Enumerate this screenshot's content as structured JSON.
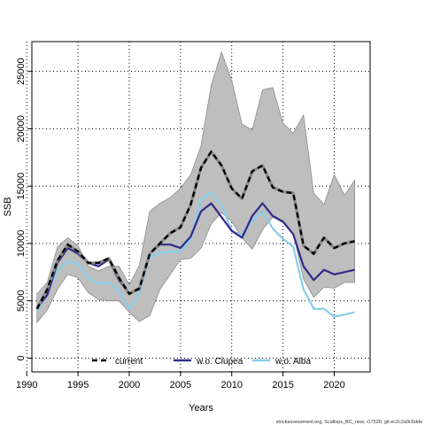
{
  "chart_data": {
    "type": "line",
    "title": "",
    "xlabel": "Years",
    "ylabel": "SSB",
    "xlim": [
      1990.5,
      2023.5
    ],
    "ylim": [
      -1200,
      27600
    ],
    "x_ticks": [
      1990,
      1995,
      2000,
      2005,
      2010,
      2015,
      2020
    ],
    "y_ticks": [
      0,
      5000,
      10000,
      15000,
      20000,
      25000
    ],
    "grid": true,
    "legend_position": "bottom",
    "x": [
      1991,
      1992,
      1993,
      1994,
      1995,
      1996,
      1997,
      1998,
      1999,
      2000,
      2001,
      2002,
      2003,
      2004,
      2005,
      2006,
      2007,
      2008,
      2009,
      2010,
      2011,
      2012,
      2013,
      2014,
      2015,
      2016,
      2017,
      2018,
      2019,
      2020,
      2021,
      2022
    ],
    "band": {
      "color": "#bebebe",
      "lower": [
        3100,
        4200,
        6000,
        7300,
        7000,
        5700,
        5100,
        5000,
        5000,
        4000,
        3200,
        3700,
        6000,
        7300,
        8600,
        8700,
        9600,
        11700,
        12700,
        11900,
        10500,
        9500,
        11200,
        12300,
        11800,
        10900,
        6900,
        5300,
        6200,
        6100,
        6600,
        6600
      ],
      "upper": [
        5600,
        6600,
        9700,
        10500,
        9800,
        8000,
        7600,
        8000,
        8000,
        6400,
        8100,
        12800,
        13500,
        14000,
        14800,
        16000,
        18500,
        23800,
        26700,
        24200,
        20400,
        19900,
        23400,
        23600,
        20500,
        19600,
        21200,
        14400,
        13400,
        16000,
        14200,
        15500
      ]
    },
    "series": [
      {
        "name": "current",
        "color": "#000000",
        "dash": "6,4",
        "values": [
          4300,
          6000,
          8500,
          9900,
          9300,
          8300,
          8300,
          8700,
          7000,
          5600,
          6100,
          9100,
          10000,
          10900,
          11400,
          13400,
          16600,
          18000,
          16800,
          14800,
          13900,
          16300,
          16800,
          14900,
          14500,
          14400,
          9800,
          9100,
          10500,
          9600,
          10000,
          10200
        ]
      },
      {
        "name": "w.o. Clupea",
        "color": "#312b8a",
        "dash": "",
        "values": [
          4400,
          5500,
          8300,
          9600,
          9100,
          8300,
          8000,
          8600,
          6800,
          5600,
          6000,
          9100,
          9900,
          9900,
          9600,
          10600,
          12800,
          13500,
          12300,
          11100,
          10500,
          12400,
          13500,
          12400,
          11900,
          10800,
          8000,
          6800,
          7700,
          7300,
          7500,
          7700
        ]
      },
      {
        "name": "w.o. Alba",
        "color": "#87ceeb",
        "dash": "",
        "values": [
          4000,
          5700,
          7600,
          8500,
          8200,
          7000,
          6500,
          6600,
          5800,
          4300,
          5700,
          8800,
          9200,
          9300,
          9300,
          10400,
          13800,
          14500,
          13300,
          11100,
          10700,
          12000,
          12800,
          11300,
          10400,
          9700,
          6000,
          4300,
          4300,
          3600,
          3800,
          4000
        ]
      }
    ]
  },
  "footer": {
    "source_text": "stockassessment.org, Scallops_BC_new, r17520, git:ec2c2a0c6dde"
  }
}
